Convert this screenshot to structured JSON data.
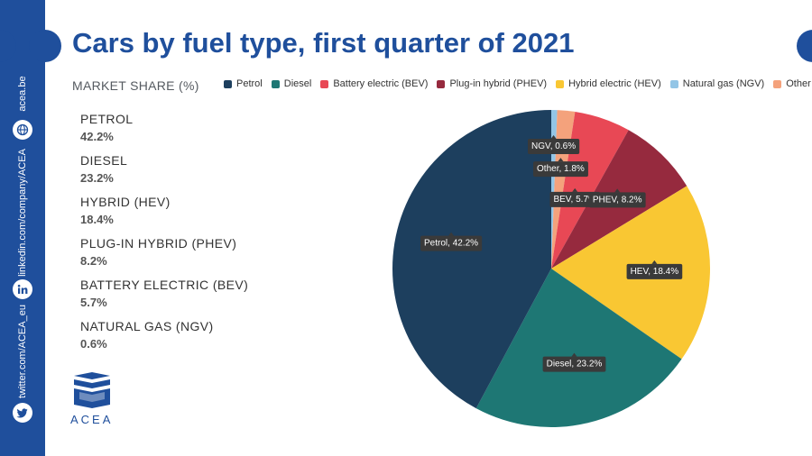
{
  "title": "Cars by fuel type, first quarter of 2021",
  "sidebar": {
    "website": "acea.be",
    "linkedin": "linkedin.com/company/ACEA",
    "twitter": "twitter.com/ACEA_eu"
  },
  "logo_text": "ACEA",
  "colors": {
    "brand": "#1f4f9c",
    "petrol": "#1d3f5e",
    "diesel": "#1e7774",
    "bev": "#e84855",
    "phev": "#962a3e",
    "hev": "#f9c733",
    "ngv": "#93c5e6",
    "other": "#f4a27c"
  },
  "chart_data": {
    "type": "pie",
    "title": "Cars by fuel type, first quarter of 2021",
    "subtitle": "MARKET SHARE (%)",
    "legend": [
      "Petrol",
      "Diesel",
      "Battery electric (BEV)",
      "Plug-in hybrid (PHEV)",
      "Hybrid electric (HEV)",
      "Natural gas (NGV)",
      "Other"
    ],
    "legend_placement": "top",
    "slices": [
      {
        "name": "NGV",
        "value": 0.6,
        "label": "NGV, 0.6%",
        "color_key": "ngv"
      },
      {
        "name": "Other",
        "value": 1.8,
        "label": "Other, 1.8%",
        "color_key": "other"
      },
      {
        "name": "BEV",
        "value": 5.7,
        "label": "BEV, 5.7%",
        "color_key": "bev"
      },
      {
        "name": "PHEV",
        "value": 8.2,
        "label": "PHEV, 8.2%",
        "color_key": "phev"
      },
      {
        "name": "HEV",
        "value": 18.4,
        "label": "HEV, 18.4%",
        "color_key": "hev"
      },
      {
        "name": "Diesel",
        "value": 23.2,
        "label": "Diesel, 23.2%",
        "color_key": "diesel"
      },
      {
        "name": "Petrol",
        "value": 42.2,
        "label": "Petrol, 42.2%",
        "color_key": "petrol"
      }
    ]
  },
  "shares": [
    {
      "name": "PETROL",
      "value": "42.2%"
    },
    {
      "name": "DIESEL",
      "value": "23.2%"
    },
    {
      "name": "HYBRID (HEV)",
      "value": "18.4%"
    },
    {
      "name": "PLUG-IN HYBRID (PHEV)",
      "value": "8.2%"
    },
    {
      "name": "BATTERY ELECTRIC (BEV)",
      "value": "5.7%"
    },
    {
      "name": "NATURAL GAS (NGV)",
      "value": "0.6%"
    }
  ]
}
